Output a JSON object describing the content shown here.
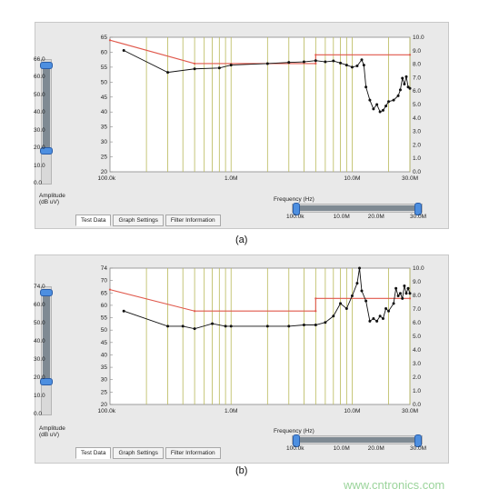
{
  "panels": [
    {
      "caption": "(a)",
      "y_ticks_left": [
        "65",
        "60",
        "55",
        "50",
        "45",
        "40",
        "35",
        "30",
        "25",
        "20"
      ],
      "y_ticks_right": [
        "10.0",
        "9.0",
        "8.0",
        "7.0",
        "6.0",
        "5.0",
        "4.0",
        "3.0",
        "2.0",
        "1.0",
        "0.0"
      ],
      "slider_ticks": [
        "66.0",
        "60.0",
        "50.0",
        "40.0",
        "30.0",
        "20.0",
        "10.0",
        "0.0"
      ],
      "x_ticks": [
        "100.0k",
        "1.0M",
        "10.0M",
        "30.0M"
      ],
      "x_label": "Frequency (Hz)",
      "range_ticks": [
        "100.0k",
        "10.0M",
        "20.0M",
        "30.0M"
      ],
      "amp_label": [
        "Amplitude",
        "(dB uV)"
      ],
      "tabs": [
        "Test Data",
        "Graph Settings",
        "Filter Information"
      ],
      "limit": [
        [
          100000,
          65
        ],
        [
          500000,
          57
        ],
        [
          5000000,
          57
        ],
        [
          5000000,
          60
        ],
        [
          30000000,
          60
        ]
      ],
      "limit_break_fraction": 0.5,
      "meas": [
        [
          130000,
          61.5
        ],
        [
          300000,
          54
        ],
        [
          500000,
          55.2
        ],
        [
          800000,
          55.5
        ],
        [
          1000000,
          56.5
        ],
        [
          2000000,
          57
        ],
        [
          3000000,
          57.4
        ],
        [
          4000000,
          57.6
        ],
        [
          5000000,
          58
        ],
        [
          6000000,
          57.6
        ],
        [
          7000000,
          57.9
        ],
        [
          8000000,
          57.2
        ],
        [
          9000000,
          56.5
        ],
        [
          10000000,
          55.8
        ],
        [
          11000000,
          56.2
        ],
        [
          12000000,
          58.3
        ],
        [
          12500000,
          56.5
        ],
        [
          13000000,
          49
        ],
        [
          14000000,
          44.5
        ],
        [
          15000000,
          41.5
        ],
        [
          16000000,
          43
        ],
        [
          17000000,
          40.5
        ],
        [
          18000000,
          41
        ],
        [
          19000000,
          42.5
        ],
        [
          20000000,
          44
        ],
        [
          22000000,
          44.5
        ],
        [
          24000000,
          46
        ],
        [
          25000000,
          48
        ],
        [
          26000000,
          52
        ],
        [
          27000000,
          50
        ],
        [
          28000000,
          52.5
        ],
        [
          29000000,
          49
        ],
        [
          30000000,
          48.5
        ]
      ],
      "ymin": 20,
      "ymax": 66,
      "selected_tab": "Test Data"
    },
    {
      "caption": "(b)",
      "y_ticks_left": [
        "74",
        "70",
        "65",
        "60",
        "55",
        "50",
        "45",
        "40",
        "35",
        "30",
        "25",
        "20"
      ],
      "y_ticks_right": [
        "10.0",
        "9.0",
        "8.0",
        "7.0",
        "6.0",
        "5.0",
        "4.0",
        "3.0",
        "2.0",
        "1.0",
        "0.0"
      ],
      "slider_ticks": [
        "74.0",
        "60.0",
        "50.0",
        "40.0",
        "30.0",
        "20.0",
        "10.0",
        "0.0"
      ],
      "x_ticks": [
        "100.0k",
        "1.0M",
        "10.0M",
        "30.0M"
      ],
      "x_label": "Frequency (Hz)",
      "range_ticks": [
        "100.0k",
        "10.0M",
        "20.0M",
        "30.0M"
      ],
      "amp_label": [
        "Amplitude",
        "(dB uV)"
      ],
      "tabs": [
        "Test Data",
        "Graph Settings",
        "Filter Information"
      ],
      "limit": [
        [
          100000,
          65.5
        ],
        [
          500000,
          57
        ],
        [
          5000000,
          57
        ],
        [
          5000000,
          62
        ],
        [
          30000000,
          62
        ]
      ],
      "meas": [
        [
          130000,
          57
        ],
        [
          300000,
          51
        ],
        [
          400000,
          51
        ],
        [
          500000,
          50
        ],
        [
          700000,
          52
        ],
        [
          900000,
          51
        ],
        [
          1000000,
          51
        ],
        [
          2000000,
          51
        ],
        [
          3000000,
          51
        ],
        [
          4000000,
          51.5
        ],
        [
          5000000,
          51.5
        ],
        [
          6000000,
          52.5
        ],
        [
          7000000,
          55
        ],
        [
          8000000,
          60
        ],
        [
          9000000,
          58
        ],
        [
          10000000,
          63
        ],
        [
          11000000,
          68
        ],
        [
          11500000,
          74
        ],
        [
          12000000,
          65
        ],
        [
          13000000,
          61
        ],
        [
          14000000,
          53
        ],
        [
          15000000,
          54
        ],
        [
          16000000,
          53
        ],
        [
          17000000,
          55
        ],
        [
          18000000,
          54
        ],
        [
          19000000,
          58
        ],
        [
          20000000,
          57
        ],
        [
          22000000,
          60
        ],
        [
          23000000,
          66
        ],
        [
          24000000,
          63
        ],
        [
          25000000,
          64
        ],
        [
          26000000,
          62
        ],
        [
          27000000,
          67
        ],
        [
          28000000,
          64
        ],
        [
          29000000,
          66
        ],
        [
          30000000,
          64
        ]
      ],
      "ymin": 20,
      "ymax": 74,
      "selected_tab": "Test Data"
    }
  ],
  "watermark": "www.cntronics.com",
  "colors": {
    "limit": "#e0584b",
    "meas": "#111111",
    "grid": "#b9b95a",
    "handle": "#4d8fe0"
  }
}
